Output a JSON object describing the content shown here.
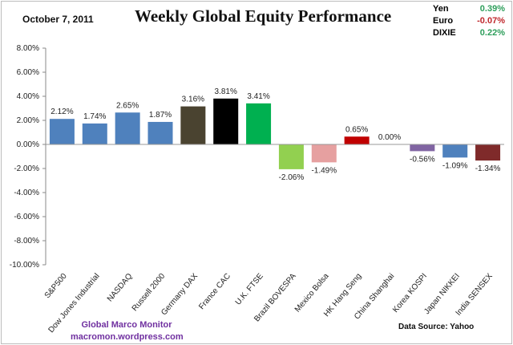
{
  "header": {
    "date": "October 7, 2011",
    "fx": [
      {
        "label": "Yen",
        "value": "0.39%",
        "color": "#2e9e5b"
      },
      {
        "label": "Euro",
        "value": "-0.07%",
        "color": "#c0282d"
      },
      {
        "label": "DIXIE",
        "value": "0.22%",
        "color": "#2e9e5b"
      }
    ]
  },
  "footer": {
    "credit_line1": "Global Marco Monitor",
    "credit_line2": "macromon.wordpress.com",
    "source": "Data Source:   Yahoo"
  },
  "chart_data": {
    "type": "bar",
    "title": "Weekly Global Equity Performance",
    "xlabel": "",
    "ylabel": "",
    "ylim": [
      -10,
      8
    ],
    "yticks": [
      "8.00%",
      "6.00%",
      "4.00%",
      "2.00%",
      "0.00%",
      "-2.00%",
      "-4.00%",
      "-6.00%",
      "-8.00%",
      "-10.00%"
    ],
    "grid": false,
    "categories": [
      "S&P500",
      "Dow Jones Industrial",
      "NASDAQ",
      "Russell 2000",
      "Germany DAX",
      "France CAC",
      "U.K. FTSE",
      "Brazil BOVESPA",
      "Mexico Bolsa",
      "HK Hang Seng",
      "China Shanghai",
      "Korea KOSPI",
      "Japan NIKKEI",
      "India SENSEX"
    ],
    "values": [
      2.12,
      1.74,
      2.65,
      1.87,
      3.16,
      3.81,
      3.41,
      -2.06,
      -1.49,
      0.65,
      0.0,
      -0.56,
      -1.09,
      -1.34
    ],
    "labels": [
      "2.12%",
      "1.74%",
      "2.65%",
      "1.87%",
      "3.16%",
      "3.81%",
      "3.41%",
      "-2.06%",
      "-1.49%",
      "0.65%",
      "0.00%",
      "-0.56%",
      "-1.09%",
      "-1.34%"
    ],
    "colors": [
      "#4f81bd",
      "#4f81bd",
      "#4f81bd",
      "#4f81bd",
      "#4a4330",
      "#000000",
      "#00b050",
      "#92d050",
      "#e6a0a0",
      "#c00000",
      "#4f81bd",
      "#8064a2",
      "#4f81bd",
      "#7f2a2a"
    ]
  }
}
